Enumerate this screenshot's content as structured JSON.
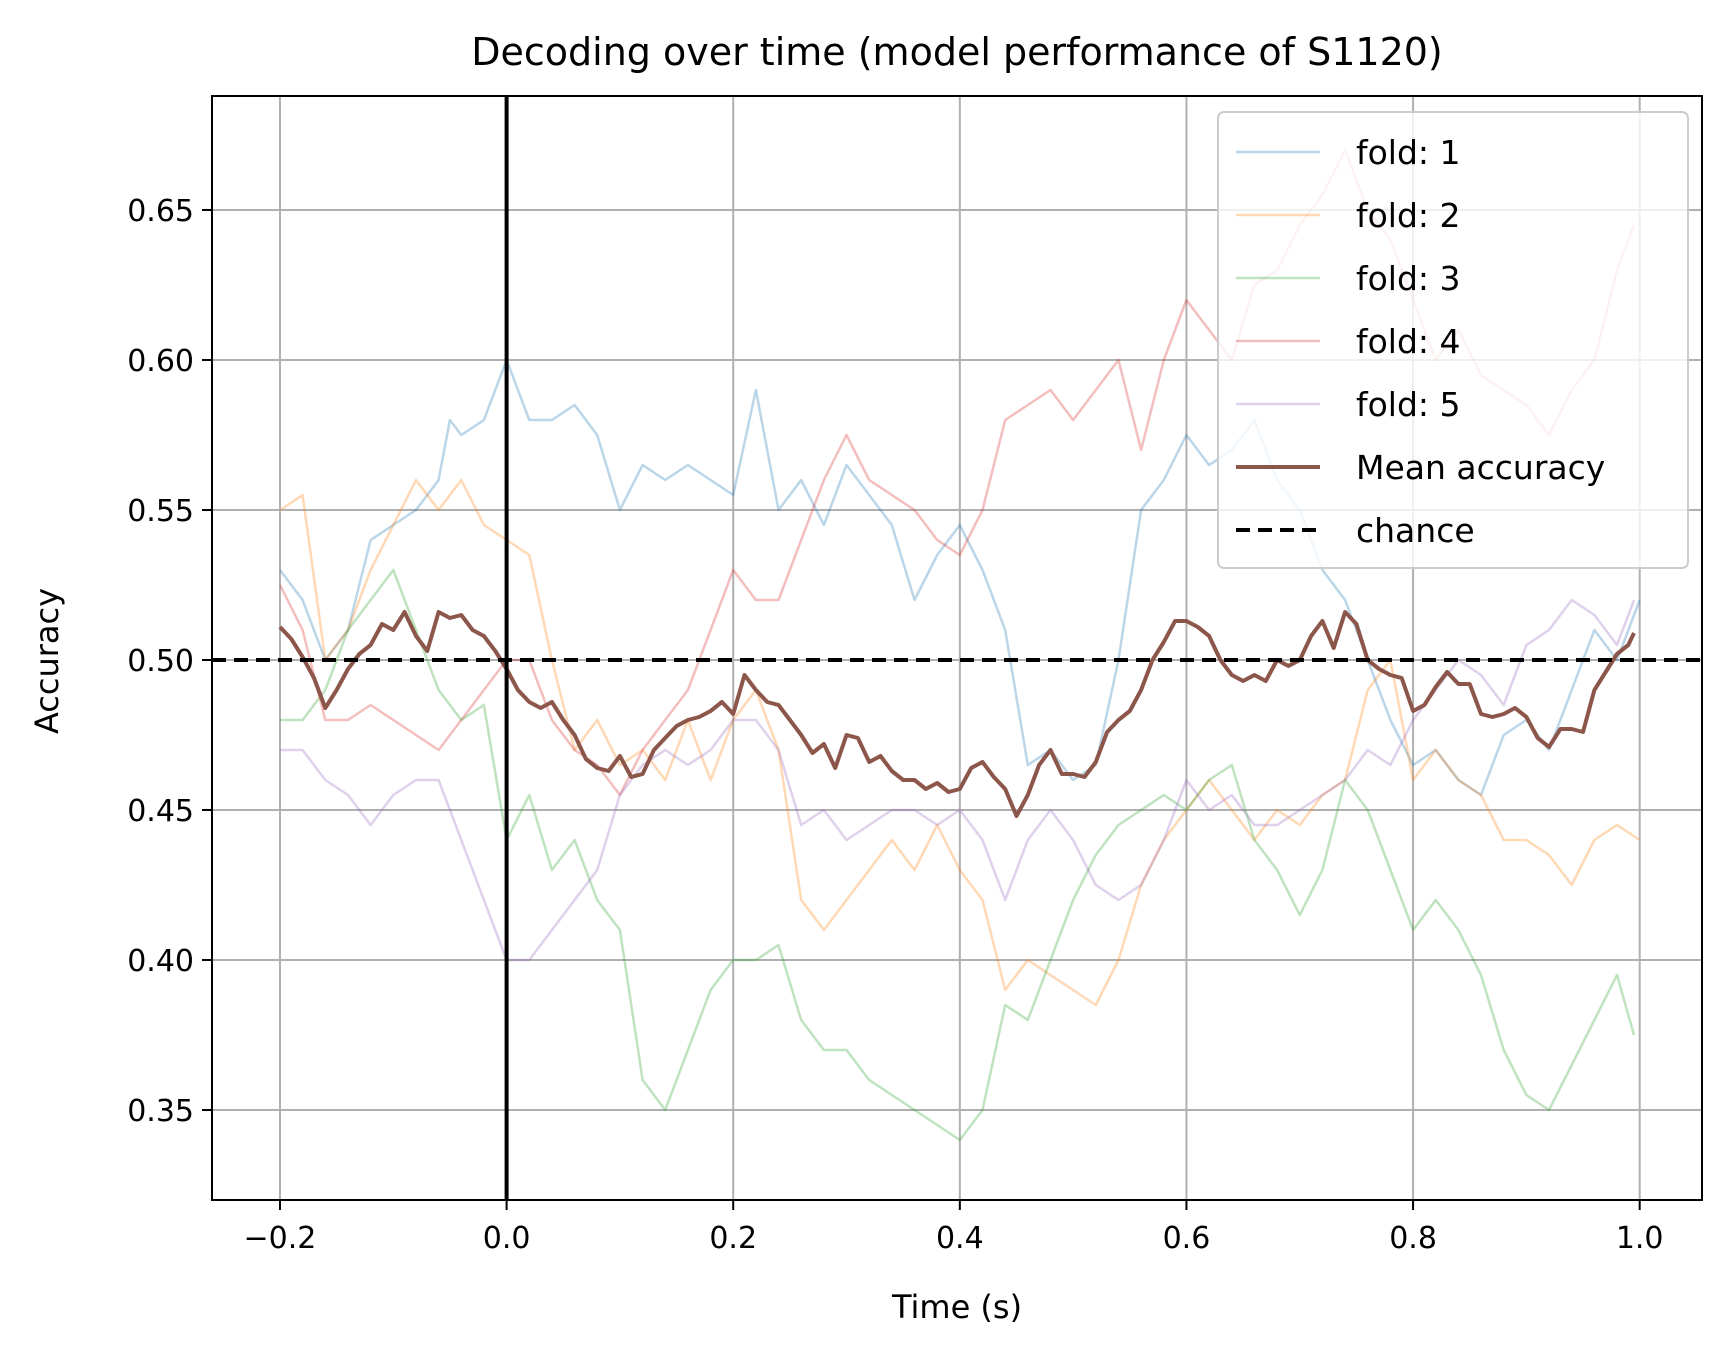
{
  "chart_data": {
    "type": "line",
    "title": "Decoding over time (model performance of S1120)",
    "xlabel": "Time (s)",
    "ylabel": "Accuracy",
    "xlim": [
      -0.26,
      1.055
    ],
    "ylim": [
      0.32,
      0.688
    ],
    "xticks": [
      -0.2,
      0.0,
      0.2,
      0.4,
      0.6,
      0.8,
      1.0
    ],
    "xtick_labels": [
      "−0.2",
      "0.0",
      "0.2",
      "0.4",
      "0.6",
      "0.8",
      "1.0"
    ],
    "yticks": [
      0.35,
      0.4,
      0.45,
      0.5,
      0.55,
      0.6,
      0.65
    ],
    "ytick_labels": [
      "0.35",
      "0.40",
      "0.45",
      "0.50",
      "0.55",
      "0.60",
      "0.65"
    ],
    "grid": true,
    "legend_position": "top-right",
    "onset_line_x": 0.0,
    "chance_level": 0.5,
    "series": [
      {
        "name": "fold: 1",
        "color": "#1f77b4",
        "opacity": 0.3,
        "x": [
          -0.2,
          -0.18,
          -0.16,
          -0.14,
          -0.12,
          -0.1,
          -0.08,
          -0.06,
          -0.05,
          -0.04,
          -0.02,
          0.0,
          0.02,
          0.04,
          0.06,
          0.08,
          0.1,
          0.12,
          0.14,
          0.16,
          0.18,
          0.2,
          0.22,
          0.24,
          0.26,
          0.28,
          0.3,
          0.32,
          0.34,
          0.36,
          0.38,
          0.4,
          0.42,
          0.44,
          0.46,
          0.48,
          0.5,
          0.52,
          0.54,
          0.56,
          0.58,
          0.6,
          0.62,
          0.64,
          0.66,
          0.68,
          0.7,
          0.72,
          0.74,
          0.76,
          0.78,
          0.8,
          0.82,
          0.84,
          0.86,
          0.88,
          0.9,
          0.92,
          0.94,
          0.96,
          0.98,
          1.0
        ],
        "y": [
          0.53,
          0.52,
          0.5,
          0.51,
          0.54,
          0.545,
          0.55,
          0.56,
          0.58,
          0.575,
          0.58,
          0.6,
          0.58,
          0.58,
          0.585,
          0.575,
          0.55,
          0.565,
          0.56,
          0.565,
          0.56,
          0.555,
          0.59,
          0.55,
          0.56,
          0.545,
          0.565,
          0.555,
          0.545,
          0.52,
          0.535,
          0.545,
          0.53,
          0.51,
          0.465,
          0.47,
          0.46,
          0.465,
          0.5,
          0.55,
          0.56,
          0.575,
          0.565,
          0.57,
          0.58,
          0.56,
          0.55,
          0.53,
          0.52,
          0.5,
          0.48,
          0.465,
          0.47,
          0.46,
          0.455,
          0.475,
          0.48,
          0.47,
          0.49,
          0.51,
          0.5,
          0.52
        ]
      },
      {
        "name": "fold: 2",
        "color": "#ff7f0e",
        "opacity": 0.3,
        "x": [
          -0.2,
          -0.18,
          -0.16,
          -0.14,
          -0.12,
          -0.1,
          -0.08,
          -0.06,
          -0.04,
          -0.02,
          0.0,
          0.02,
          0.04,
          0.06,
          0.08,
          0.1,
          0.12,
          0.14,
          0.16,
          0.18,
          0.2,
          0.22,
          0.24,
          0.26,
          0.28,
          0.3,
          0.32,
          0.34,
          0.36,
          0.38,
          0.4,
          0.42,
          0.44,
          0.46,
          0.48,
          0.5,
          0.52,
          0.54,
          0.56,
          0.58,
          0.6,
          0.62,
          0.64,
          0.66,
          0.68,
          0.7,
          0.72,
          0.74,
          0.76,
          0.78,
          0.8,
          0.82,
          0.84,
          0.86,
          0.88,
          0.9,
          0.92,
          0.94,
          0.96,
          0.98,
          1.0
        ],
        "y": [
          0.55,
          0.555,
          0.5,
          0.51,
          0.53,
          0.545,
          0.56,
          0.55,
          0.56,
          0.545,
          0.54,
          0.535,
          0.5,
          0.47,
          0.48,
          0.465,
          0.47,
          0.46,
          0.48,
          0.46,
          0.48,
          0.49,
          0.47,
          0.42,
          0.41,
          0.42,
          0.43,
          0.44,
          0.43,
          0.445,
          0.43,
          0.42,
          0.39,
          0.4,
          0.395,
          0.39,
          0.385,
          0.4,
          0.425,
          0.44,
          0.45,
          0.46,
          0.45,
          0.44,
          0.45,
          0.445,
          0.455,
          0.46,
          0.49,
          0.5,
          0.46,
          0.47,
          0.46,
          0.455,
          0.44,
          0.44,
          0.435,
          0.425,
          0.44,
          0.445,
          0.44
        ]
      },
      {
        "name": "fold: 3",
        "color": "#2ca02c",
        "opacity": 0.3,
        "x": [
          -0.2,
          -0.18,
          -0.16,
          -0.14,
          -0.12,
          -0.1,
          -0.08,
          -0.06,
          -0.04,
          -0.02,
          0.0,
          0.02,
          0.04,
          0.06,
          0.08,
          0.1,
          0.12,
          0.14,
          0.16,
          0.18,
          0.2,
          0.22,
          0.24,
          0.26,
          0.28,
          0.3,
          0.32,
          0.34,
          0.36,
          0.38,
          0.4,
          0.42,
          0.44,
          0.46,
          0.48,
          0.5,
          0.52,
          0.54,
          0.56,
          0.58,
          0.6,
          0.62,
          0.64,
          0.66,
          0.68,
          0.7,
          0.72,
          0.74,
          0.76,
          0.78,
          0.8,
          0.82,
          0.84,
          0.86,
          0.88,
          0.9,
          0.92,
          0.94,
          0.96,
          0.98,
          0.995
        ],
        "y": [
          0.48,
          0.48,
          0.49,
          0.51,
          0.52,
          0.53,
          0.51,
          0.49,
          0.48,
          0.485,
          0.44,
          0.455,
          0.43,
          0.44,
          0.42,
          0.41,
          0.36,
          0.35,
          0.37,
          0.39,
          0.4,
          0.4,
          0.405,
          0.38,
          0.37,
          0.37,
          0.36,
          0.355,
          0.35,
          0.345,
          0.34,
          0.35,
          0.385,
          0.38,
          0.4,
          0.42,
          0.435,
          0.445,
          0.45,
          0.455,
          0.45,
          0.46,
          0.465,
          0.44,
          0.43,
          0.415,
          0.43,
          0.46,
          0.45,
          0.43,
          0.41,
          0.42,
          0.41,
          0.395,
          0.37,
          0.355,
          0.35,
          0.365,
          0.38,
          0.395,
          0.375
        ]
      },
      {
        "name": "fold: 4",
        "color": "#d62728",
        "opacity": 0.3,
        "x": [
          -0.2,
          -0.18,
          -0.16,
          -0.14,
          -0.12,
          -0.1,
          -0.08,
          -0.06,
          -0.04,
          -0.02,
          0.0,
          0.02,
          0.04,
          0.06,
          0.08,
          0.1,
          0.12,
          0.14,
          0.16,
          0.18,
          0.2,
          0.22,
          0.24,
          0.26,
          0.28,
          0.3,
          0.32,
          0.34,
          0.36,
          0.38,
          0.4,
          0.42,
          0.44,
          0.46,
          0.48,
          0.5,
          0.52,
          0.54,
          0.56,
          0.58,
          0.6,
          0.62,
          0.64,
          0.66,
          0.68,
          0.7,
          0.72,
          0.74,
          0.76,
          0.78,
          0.8,
          0.82,
          0.84,
          0.86,
          0.88,
          0.9,
          0.92,
          0.94,
          0.96,
          0.98,
          0.995
        ],
        "y": [
          0.525,
          0.51,
          0.48,
          0.48,
          0.485,
          0.48,
          0.475,
          0.47,
          0.48,
          0.49,
          0.5,
          0.5,
          0.48,
          0.47,
          0.465,
          0.455,
          0.47,
          0.48,
          0.49,
          0.51,
          0.53,
          0.52,
          0.52,
          0.54,
          0.56,
          0.575,
          0.56,
          0.555,
          0.55,
          0.54,
          0.535,
          0.55,
          0.58,
          0.585,
          0.59,
          0.58,
          0.59,
          0.6,
          0.57,
          0.6,
          0.62,
          0.61,
          0.6,
          0.625,
          0.63,
          0.645,
          0.655,
          0.67,
          0.65,
          0.64,
          0.62,
          0.6,
          0.61,
          0.595,
          0.59,
          0.585,
          0.575,
          0.59,
          0.6,
          0.63,
          0.645
        ]
      },
      {
        "name": "fold: 5",
        "color": "#9467bd",
        "opacity": 0.3,
        "x": [
          -0.2,
          -0.18,
          -0.16,
          -0.14,
          -0.12,
          -0.1,
          -0.08,
          -0.06,
          -0.04,
          -0.02,
          0.0,
          0.02,
          0.04,
          0.06,
          0.08,
          0.1,
          0.12,
          0.14,
          0.16,
          0.18,
          0.2,
          0.22,
          0.24,
          0.26,
          0.28,
          0.3,
          0.32,
          0.34,
          0.36,
          0.38,
          0.4,
          0.42,
          0.44,
          0.46,
          0.48,
          0.5,
          0.52,
          0.54,
          0.56,
          0.58,
          0.6,
          0.62,
          0.64,
          0.66,
          0.68,
          0.7,
          0.72,
          0.74,
          0.76,
          0.78,
          0.8,
          0.82,
          0.84,
          0.86,
          0.88,
          0.9,
          0.92,
          0.94,
          0.96,
          0.98,
          0.995
        ],
        "y": [
          0.47,
          0.47,
          0.46,
          0.455,
          0.445,
          0.455,
          0.46,
          0.46,
          0.44,
          0.42,
          0.4,
          0.4,
          0.41,
          0.42,
          0.43,
          0.455,
          0.465,
          0.47,
          0.465,
          0.47,
          0.48,
          0.48,
          0.47,
          0.445,
          0.45,
          0.44,
          0.445,
          0.45,
          0.45,
          0.445,
          0.45,
          0.44,
          0.42,
          0.44,
          0.45,
          0.44,
          0.425,
          0.42,
          0.425,
          0.44,
          0.46,
          0.45,
          0.455,
          0.445,
          0.445,
          0.45,
          0.455,
          0.46,
          0.47,
          0.465,
          0.48,
          0.49,
          0.5,
          0.495,
          0.485,
          0.505,
          0.51,
          0.52,
          0.515,
          0.505,
          0.52
        ]
      },
      {
        "name": "Mean accuracy",
        "color": "#8c564b",
        "opacity": 1.0,
        "x": [
          -0.2,
          -0.19,
          -0.18,
          -0.17,
          -0.16,
          -0.15,
          -0.14,
          -0.13,
          -0.12,
          -0.11,
          -0.1,
          -0.09,
          -0.08,
          -0.07,
          -0.06,
          -0.05,
          -0.04,
          -0.03,
          -0.02,
          -0.01,
          0.0,
          0.01,
          0.02,
          0.03,
          0.04,
          0.05,
          0.06,
          0.07,
          0.08,
          0.09,
          0.1,
          0.11,
          0.12,
          0.13,
          0.14,
          0.15,
          0.16,
          0.17,
          0.18,
          0.19,
          0.2,
          0.21,
          0.22,
          0.23,
          0.24,
          0.25,
          0.26,
          0.27,
          0.28,
          0.29,
          0.3,
          0.31,
          0.32,
          0.33,
          0.34,
          0.35,
          0.36,
          0.37,
          0.38,
          0.39,
          0.4,
          0.41,
          0.42,
          0.43,
          0.44,
          0.45,
          0.46,
          0.47,
          0.48,
          0.49,
          0.5,
          0.51,
          0.52,
          0.53,
          0.54,
          0.55,
          0.56,
          0.57,
          0.58,
          0.59,
          0.6,
          0.61,
          0.62,
          0.63,
          0.64,
          0.65,
          0.66,
          0.67,
          0.68,
          0.69,
          0.7,
          0.71,
          0.72,
          0.73,
          0.74,
          0.75,
          0.76,
          0.77,
          0.78,
          0.79,
          0.8,
          0.81,
          0.82,
          0.83,
          0.84,
          0.85,
          0.86,
          0.87,
          0.88,
          0.89,
          0.9,
          0.91,
          0.92,
          0.93,
          0.94,
          0.95,
          0.96,
          0.97,
          0.98,
          0.99,
          0.995
        ],
        "y": [
          0.511,
          0.507,
          0.501,
          0.494,
          0.484,
          0.49,
          0.497,
          0.502,
          0.505,
          0.512,
          0.51,
          0.516,
          0.508,
          0.503,
          0.516,
          0.514,
          0.515,
          0.51,
          0.508,
          0.503,
          0.497,
          0.49,
          0.486,
          0.484,
          0.486,
          0.48,
          0.475,
          0.467,
          0.464,
          0.463,
          0.468,
          0.461,
          0.462,
          0.47,
          0.474,
          0.478,
          0.48,
          0.481,
          0.483,
          0.486,
          0.482,
          0.495,
          0.49,
          0.486,
          0.485,
          0.48,
          0.475,
          0.469,
          0.472,
          0.464,
          0.475,
          0.474,
          0.466,
          0.468,
          0.463,
          0.46,
          0.46,
          0.457,
          0.459,
          0.456,
          0.457,
          0.464,
          0.466,
          0.461,
          0.457,
          0.448,
          0.455,
          0.465,
          0.47,
          0.462,
          0.462,
          0.461,
          0.466,
          0.476,
          0.48,
          0.483,
          0.49,
          0.5,
          0.506,
          0.513,
          0.513,
          0.511,
          0.508,
          0.5,
          0.495,
          0.493,
          0.495,
          0.493,
          0.5,
          0.498,
          0.5,
          0.508,
          0.513,
          0.504,
          0.516,
          0.512,
          0.5,
          0.497,
          0.495,
          0.494,
          0.483,
          0.485,
          0.491,
          0.496,
          0.492,
          0.492,
          0.482,
          0.481,
          0.482,
          0.484,
          0.481,
          0.474,
          0.471,
          0.477,
          0.477,
          0.476,
          0.49,
          0.496,
          0.502,
          0.505,
          0.509
        ]
      }
    ],
    "chance_series": {
      "name": "chance",
      "color": "#000000",
      "style": "dashed"
    }
  }
}
